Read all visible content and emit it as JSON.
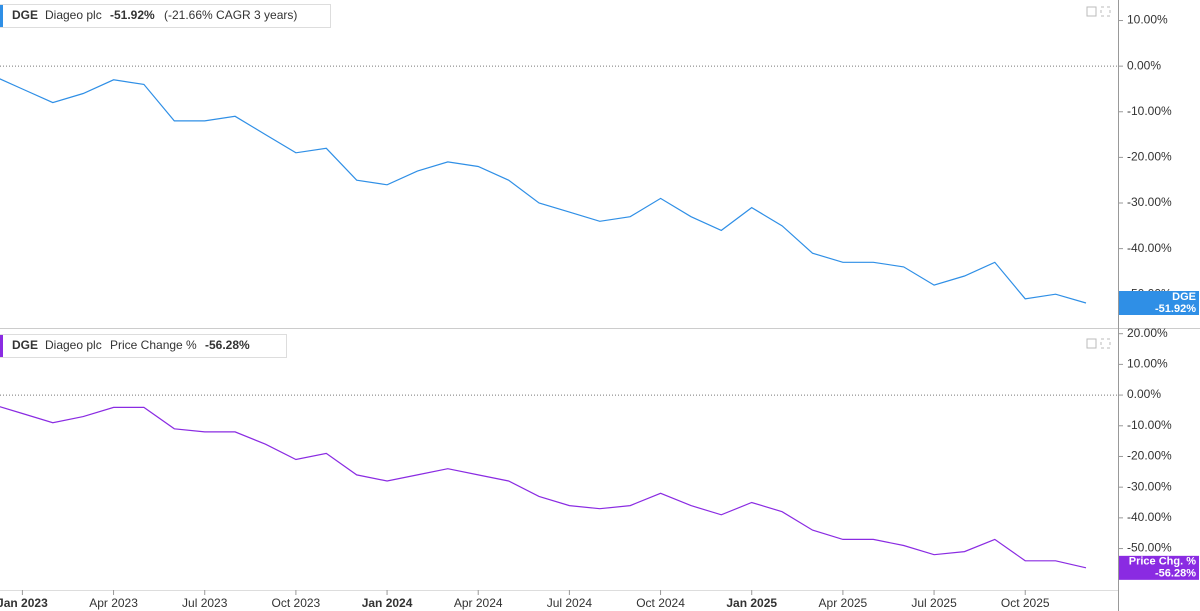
{
  "chart_data": [
    {
      "type": "line",
      "legend": {
        "symbol": "DGE",
        "name": "Diageo plc",
        "change": "-51.92%",
        "note": "(-21.66% CAGR 3 years)"
      },
      "marker": {
        "symbol": "DGE",
        "value": "-51.92%"
      },
      "x": [
        "2022-12",
        "2023-01",
        "2023-02",
        "2023-03",
        "2023-04",
        "2023-05",
        "2023-06",
        "2023-07",
        "2023-08",
        "2023-09",
        "2023-10",
        "2023-11",
        "2023-12",
        "2024-01",
        "2024-02",
        "2024-03",
        "2024-04",
        "2024-05",
        "2024-06",
        "2024-07",
        "2024-08",
        "2024-09",
        "2024-10",
        "2024-11",
        "2024-12",
        "2025-01",
        "2025-02",
        "2025-03",
        "2025-04",
        "2025-05",
        "2025-06",
        "2025-07",
        "2025-08",
        "2025-09",
        "2025-10",
        "2025-11",
        "2025-12"
      ],
      "series": [
        {
          "name": "DGE",
          "color": "#2f8fe6",
          "values": [
            -2,
            -5,
            -8,
            -6,
            -3,
            -4,
            -12,
            -12,
            -11,
            -15,
            -19,
            -18,
            -25,
            -26,
            -23,
            -21,
            -22,
            -25,
            -30,
            -32,
            -34,
            -33,
            -29,
            -33,
            -36,
            -31,
            -35,
            -41,
            -43,
            -43,
            -44,
            -48,
            -46,
            -43,
            -51,
            -50,
            -51.92
          ]
        }
      ],
      "xlim": [
        "2022-12",
        "2026-01"
      ],
      "ylim": [
        -57.4,
        14.5
      ],
      "yticks": [
        {
          "value": 10,
          "label": "10.00%"
        },
        {
          "value": 0,
          "label": "0.00%"
        },
        {
          "value": -10,
          "label": "-10.00%"
        },
        {
          "value": -20,
          "label": "-20.00%"
        },
        {
          "value": -30,
          "label": "-30.00%"
        },
        {
          "value": -40,
          "label": "-40.00%"
        },
        {
          "value": -50,
          "label": "-50.00%"
        }
      ],
      "zero_line": true
    },
    {
      "type": "line",
      "legend": {
        "symbol": "DGE",
        "name": "Diageo plc",
        "change": "Price Change %",
        "note": "-56.28%"
      },
      "marker": {
        "symbol": "Price Chg. %",
        "value": "-56.28%"
      },
      "x": [
        "2022-12",
        "2023-01",
        "2023-02",
        "2023-03",
        "2023-04",
        "2023-05",
        "2023-06",
        "2023-07",
        "2023-08",
        "2023-09",
        "2023-10",
        "2023-11",
        "2023-12",
        "2024-01",
        "2024-02",
        "2024-03",
        "2024-04",
        "2024-05",
        "2024-06",
        "2024-07",
        "2024-08",
        "2024-09",
        "2024-10",
        "2024-11",
        "2024-12",
        "2025-01",
        "2025-02",
        "2025-03",
        "2025-04",
        "2025-05",
        "2025-06",
        "2025-07",
        "2025-08",
        "2025-09",
        "2025-10",
        "2025-11",
        "2025-12"
      ],
      "series": [
        {
          "name": "Price Change %",
          "color": "#8a2be2",
          "values": [
            -3,
            -6,
            -9,
            -7,
            -4,
            -4,
            -11,
            -12,
            -12,
            -16,
            -21,
            -19,
            -26,
            -28,
            -26,
            -24,
            -26,
            -28,
            -33,
            -36,
            -37,
            -36,
            -32,
            -36,
            -39,
            -35,
            -38,
            -44,
            -47,
            -47,
            -49,
            -52,
            -51,
            -47,
            -54,
            -54,
            -56.28
          ]
        }
      ],
      "xlim": [
        "2022-12",
        "2026-01"
      ],
      "ylim": [
        -63.5,
        21.2
      ],
      "yticks": [
        {
          "value": 20,
          "label": "20.00%"
        },
        {
          "value": 10,
          "label": "10.00%"
        },
        {
          "value": 0,
          "label": "0.00%"
        },
        {
          "value": -10,
          "label": "-10.00%"
        },
        {
          "value": -20,
          "label": "-20.00%"
        },
        {
          "value": -30,
          "label": "-30.00%"
        },
        {
          "value": -40,
          "label": "-40.00%"
        },
        {
          "value": -50,
          "label": "-50.00%"
        }
      ],
      "xticks": [
        {
          "value": "2023-01",
          "label": "Jan 2023"
        },
        {
          "value": "2023-04",
          "label": "Apr 2023"
        },
        {
          "value": "2023-07",
          "label": "Jul 2023"
        },
        {
          "value": "2023-10",
          "label": "Oct 2023"
        },
        {
          "value": "2024-01",
          "label": "Jan 2024"
        },
        {
          "value": "2024-04",
          "label": "Apr 2024"
        },
        {
          "value": "2024-07",
          "label": "Jul 2024"
        },
        {
          "value": "2024-10",
          "label": "Oct 2024"
        },
        {
          "value": "2025-01",
          "label": "Jan 2025"
        },
        {
          "value": "2025-04",
          "label": "Apr 2025"
        },
        {
          "value": "2025-07",
          "label": "Jul 2025"
        },
        {
          "value": "2025-10",
          "label": "Oct 2025"
        }
      ],
      "zero_line": true
    }
  ]
}
